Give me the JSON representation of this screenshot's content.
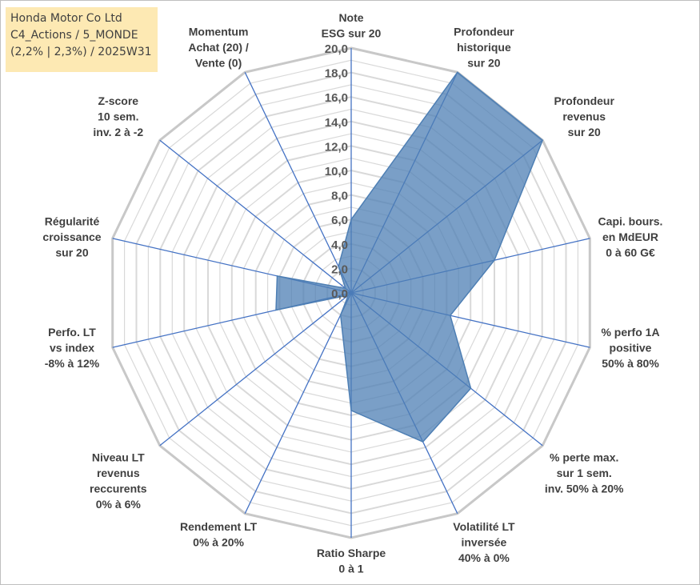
{
  "chart_data": {
    "type": "radar",
    "title_lines": [
      "Honda Motor Co Ltd",
      "C4_Actions / 5_MONDE",
      "(2,2% | 2,3%) / 2025W31"
    ],
    "axes": [
      {
        "label": [
          "Note",
          "ESG sur 20"
        ],
        "value": 6.0
      },
      {
        "label": [
          "Profondeur",
          "historique",
          "sur 20"
        ],
        "value": 20.0
      },
      {
        "label": [
          "Profondeur",
          "revenus",
          "sur 20"
        ],
        "value": 20.0
      },
      {
        "label": [
          "Capi. bours.",
          "en MdEUR",
          "0 à 60 G€"
        ],
        "value": 12.0
      },
      {
        "label": [
          "% perfo 1A",
          "positive",
          "50% à 80%"
        ],
        "value": 8.3
      },
      {
        "label": [
          "% perte max.",
          "sur 1 sem.",
          "inv. 50% à 20%"
        ],
        "value": 12.5
      },
      {
        "label": [
          "Volatilité LT",
          "inversée",
          "40% à 0%"
        ],
        "value": 13.5
      },
      {
        "label": [
          "Ratio Sharpe",
          "0 à 1"
        ],
        "value": 9.6
      },
      {
        "label": [
          "Rendement LT",
          "0% à 20%"
        ],
        "value": 2.0
      },
      {
        "label": [
          "Niveau LT",
          "revenus",
          "reccurents",
          "0% à 6%"
        ],
        "value": 0.3
      },
      {
        "label": [
          "Perfo. LT",
          "vs index",
          "-8% à 12%"
        ],
        "value": 6.3
      },
      {
        "label": [
          "Régularité",
          "croissance",
          "sur 20"
        ],
        "value": 6.2
      },
      {
        "label": [
          "Z-score",
          "10 sem.",
          "inv. 2 à -2"
        ],
        "value": 0.6
      },
      {
        "label": [
          "Momentum",
          "Achat (20) /",
          "Vente (0)"
        ],
        "value": 2.4
      }
    ],
    "r_ticks": [
      "0,0",
      "2,0",
      "4,0",
      "6,0",
      "8,0",
      "10,0",
      "12,0",
      "14,0",
      "16,0",
      "18,0",
      "20,0"
    ],
    "rlim": [
      0,
      20
    ],
    "grid": true,
    "fill_color": "#4e7fb4",
    "fill_opacity": 0.75,
    "line_color": "#4472c4",
    "grid_color": "#d9d9d9"
  }
}
